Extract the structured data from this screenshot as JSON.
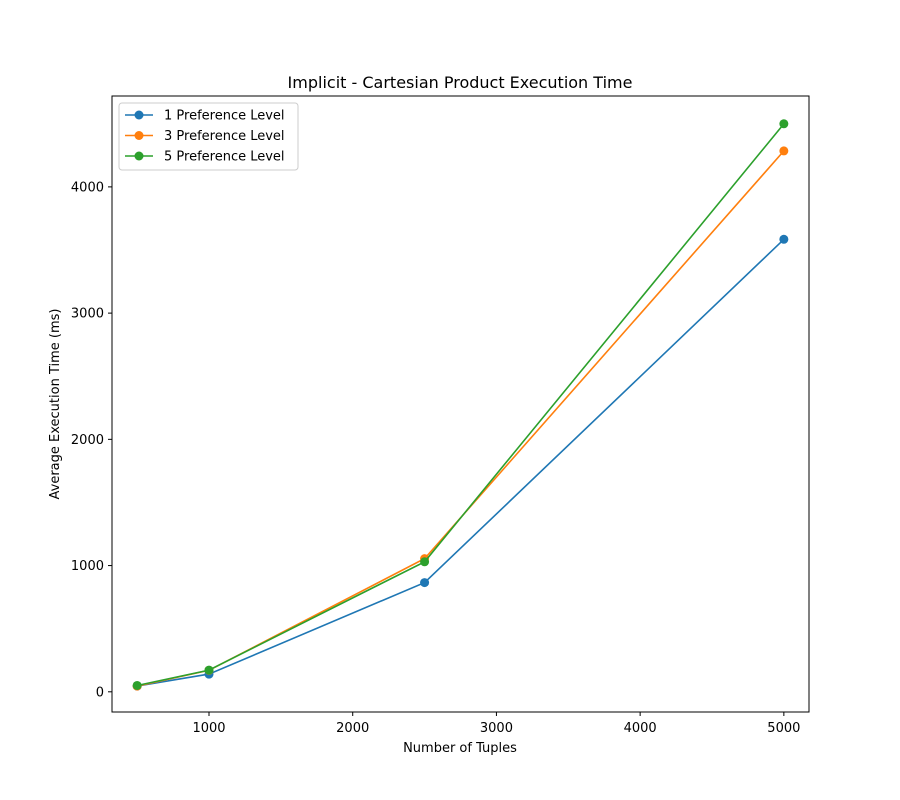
{
  "chart_data": {
    "type": "line",
    "title": "Implicit - Cartesian Product Execution Time",
    "xlabel": "Number of Tuples",
    "ylabel": "Average Execution Time (ms)",
    "x": [
      500,
      1000,
      2500,
      5000
    ],
    "xlim": [
      325,
      5175
    ],
    "ylim": [
      -160,
      4720
    ],
    "xticks": [
      1000,
      2000,
      3000,
      4000,
      5000
    ],
    "yticks": [
      0,
      1000,
      2000,
      3000,
      4000
    ],
    "grid": false,
    "legend_position": "top-left",
    "series": [
      {
        "name": "1 Preference Level",
        "color": "#1f77b4",
        "values": [
          45,
          140,
          865,
          3585
        ]
      },
      {
        "name": "3 Preference Level",
        "color": "#ff7f0e",
        "values": [
          45,
          170,
          1055,
          4285
        ]
      },
      {
        "name": "5 Preference Level",
        "color": "#2ca02c",
        "values": [
          50,
          172,
          1030,
          4500
        ]
      }
    ]
  }
}
